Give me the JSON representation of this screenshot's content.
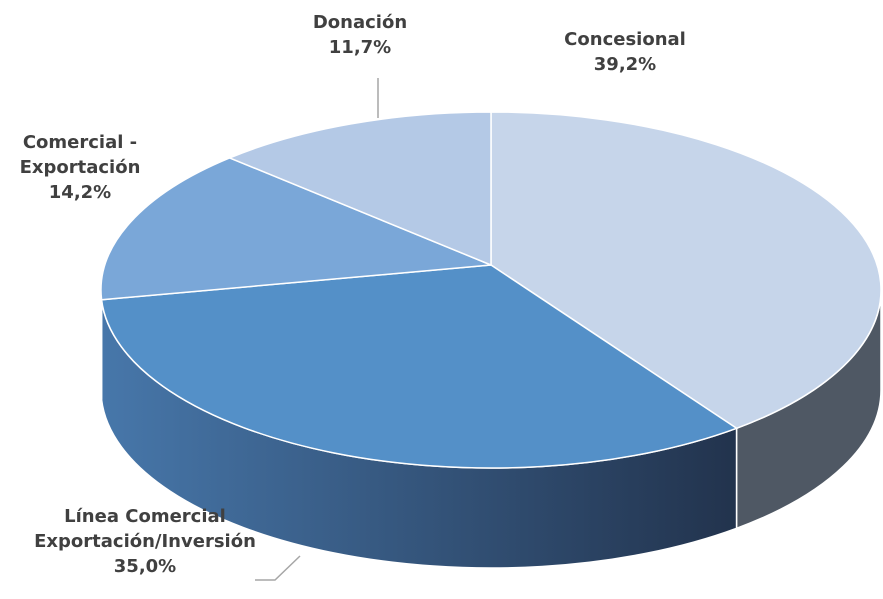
{
  "chart_data": {
    "type": "pie",
    "categories": [
      "Concesional",
      "Línea Comercial\nExportación/Inversión",
      "Comercial -\nExportación",
      "Donación"
    ],
    "values": [
      39.2,
      35.0,
      14.2,
      11.7
    ],
    "value_labels": [
      "39,2%",
      "35,0%",
      "14,2%",
      "11,7%"
    ],
    "colors": [
      "#c6d5ea",
      "#5490c8",
      "#7aa7d8",
      "#b4c9e6"
    ],
    "side_colors": [
      "#4f5864",
      "#34577f",
      "#3f6c9e",
      "#6b86ab"
    ]
  }
}
